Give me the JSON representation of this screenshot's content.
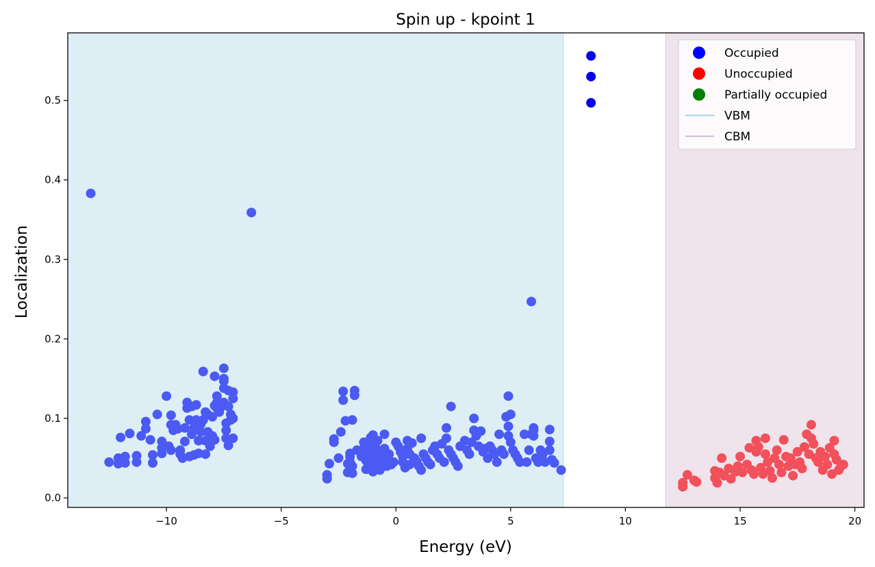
{
  "chart_data": {
    "type": "scatter",
    "title": "Spin up - kpoint 1",
    "xlabel": "Energy (eV)",
    "ylabel": "Localization",
    "xlim": [
      -14.3,
      20.4
    ],
    "ylim": [
      -0.012,
      0.585
    ],
    "xticks": [
      -10,
      -5,
      0,
      5,
      10,
      15,
      20
    ],
    "xtick_labels": [
      "−10",
      "−5",
      "0",
      "5",
      "10",
      "15",
      "20"
    ],
    "yticks": [
      0.0,
      0.1,
      0.2,
      0.3,
      0.4,
      0.5
    ],
    "ytick_labels": [
      "0.0",
      "0.1",
      "0.2",
      "0.3",
      "0.4",
      "0.5"
    ],
    "grid": false,
    "legend_position": "top-right",
    "vbm": 7.3,
    "cbm": 11.75,
    "regions": [
      {
        "name": "VBM",
        "from": -14.3,
        "to": 7.3,
        "color": "#ddeef5"
      },
      {
        "name": "CBM",
        "from": 11.75,
        "to": 20.4,
        "color": "#efe3ec"
      }
    ],
    "legend": [
      {
        "label": "Occupied",
        "kind": "marker",
        "color": "#0000ff"
      },
      {
        "label": "Unoccupied",
        "kind": "marker",
        "color": "#ff0000"
      },
      {
        "label": "Partially occupied",
        "kind": "marker",
        "color": "#008000"
      },
      {
        "label": "VBM",
        "kind": "line",
        "color": "#add8e6"
      },
      {
        "label": "CBM",
        "kind": "line",
        "color": "#d8bfd8"
      }
    ],
    "series": [
      {
        "name": "Occupied",
        "color": "#4a5af2",
        "points": [
          [
            -13.3,
            0.383
          ],
          [
            -6.3,
            0.359
          ],
          [
            5.9,
            0.247
          ],
          [
            -12.5,
            0.045
          ],
          [
            -12.1,
            0.05
          ],
          [
            -12.1,
            0.043
          ],
          [
            -12.0,
            0.076
          ],
          [
            -11.8,
            0.052
          ],
          [
            -11.8,
            0.044
          ],
          [
            -11.6,
            0.081
          ],
          [
            -11.3,
            0.053
          ],
          [
            -11.3,
            0.045
          ],
          [
            -11.1,
            0.078
          ],
          [
            -10.9,
            0.087
          ],
          [
            -10.9,
            0.096
          ],
          [
            -10.7,
            0.073
          ],
          [
            -10.6,
            0.044
          ],
          [
            -10.6,
            0.054
          ],
          [
            -10.4,
            0.105
          ],
          [
            -10.2,
            0.056
          ],
          [
            -10.2,
            0.063
          ],
          [
            -10.2,
            0.071
          ],
          [
            -10.0,
            0.128
          ],
          [
            -9.9,
            0.065
          ],
          [
            -9.8,
            0.06
          ],
          [
            -9.8,
            0.092
          ],
          [
            -9.8,
            0.104
          ],
          [
            -9.7,
            0.085
          ],
          [
            -9.6,
            0.092
          ],
          [
            -9.5,
            0.087
          ],
          [
            -9.4,
            0.06
          ],
          [
            -9.4,
            0.055
          ],
          [
            -9.3,
            0.05
          ],
          [
            -9.2,
            0.088
          ],
          [
            -9.2,
            0.071
          ],
          [
            -9.1,
            0.113
          ],
          [
            -9.1,
            0.12
          ],
          [
            -9.0,
            0.052
          ],
          [
            -9.0,
            0.098
          ],
          [
            -8.9,
            0.115
          ],
          [
            -8.9,
            0.08
          ],
          [
            -8.8,
            0.054
          ],
          [
            -8.8,
            0.088
          ],
          [
            -8.7,
            0.117
          ],
          [
            -8.7,
            0.098
          ],
          [
            -8.6,
            0.072
          ],
          [
            -8.6,
            0.056
          ],
          [
            -8.5,
            0.093
          ],
          [
            -8.5,
            0.083
          ],
          [
            -8.4,
            0.159
          ],
          [
            -8.4,
            0.098
          ],
          [
            -8.3,
            0.072
          ],
          [
            -8.3,
            0.055
          ],
          [
            -8.3,
            0.108
          ],
          [
            -8.2,
            0.105
          ],
          [
            -8.2,
            0.083
          ],
          [
            -8.1,
            0.065
          ],
          [
            -8.1,
            0.075
          ],
          [
            -8.0,
            0.102
          ],
          [
            -8.0,
            0.078
          ],
          [
            -7.9,
            0.153
          ],
          [
            -7.9,
            0.116
          ],
          [
            -7.9,
            0.073
          ],
          [
            -7.8,
            0.128
          ],
          [
            -7.8,
            0.113
          ],
          [
            -7.8,
            0.12
          ],
          [
            -7.7,
            0.108
          ],
          [
            -7.6,
            0.115
          ],
          [
            -7.5,
            0.163
          ],
          [
            -7.5,
            0.15
          ],
          [
            -7.5,
            0.147
          ],
          [
            -7.5,
            0.138
          ],
          [
            -7.5,
            0.12
          ],
          [
            -7.4,
            0.094
          ],
          [
            -7.4,
            0.085
          ],
          [
            -7.4,
            0.075
          ],
          [
            -7.3,
            0.135
          ],
          [
            -7.3,
            0.115
          ],
          [
            -7.3,
            0.066
          ],
          [
            -7.2,
            0.105
          ],
          [
            -7.2,
            0.098
          ],
          [
            -7.1,
            0.133
          ],
          [
            -7.1,
            0.125
          ],
          [
            -7.1,
            0.1
          ],
          [
            -7.1,
            0.075
          ],
          [
            -3.0,
            0.029
          ],
          [
            -3.0,
            0.024
          ],
          [
            -2.9,
            0.043
          ],
          [
            -2.7,
            0.074
          ],
          [
            -2.7,
            0.07
          ],
          [
            -2.5,
            0.05
          ],
          [
            -2.4,
            0.083
          ],
          [
            -2.3,
            0.134
          ],
          [
            -2.3,
            0.123
          ],
          [
            -2.2,
            0.097
          ],
          [
            -2.1,
            0.043
          ],
          [
            -2.1,
            0.032
          ],
          [
            -2.0,
            0.056
          ],
          [
            -2.0,
            0.052
          ],
          [
            -2.0,
            0.045
          ],
          [
            -1.9,
            0.098
          ],
          [
            -1.9,
            0.04
          ],
          [
            -1.9,
            0.031
          ],
          [
            -1.8,
            0.135
          ],
          [
            -1.8,
            0.129
          ],
          [
            -1.7,
            0.06
          ],
          [
            -1.5,
            0.058
          ],
          [
            -1.5,
            0.052
          ],
          [
            -1.4,
            0.07
          ],
          [
            -1.4,
            0.062
          ],
          [
            -1.3,
            0.055
          ],
          [
            -1.3,
            0.047
          ],
          [
            -1.3,
            0.036
          ],
          [
            -1.2,
            0.068
          ],
          [
            -1.2,
            0.042
          ],
          [
            -1.1,
            0.076
          ],
          [
            -1.1,
            0.06
          ],
          [
            -1.1,
            0.05
          ],
          [
            -1.0,
            0.045
          ],
          [
            -1.0,
            0.033
          ],
          [
            -1.0,
            0.079
          ],
          [
            -0.9,
            0.055
          ],
          [
            -0.9,
            0.065
          ],
          [
            -0.9,
            0.038
          ],
          [
            -0.8,
            0.06
          ],
          [
            -0.8,
            0.048
          ],
          [
            -0.8,
            0.072
          ],
          [
            -0.7,
            0.042
          ],
          [
            -0.7,
            0.035
          ],
          [
            -0.6,
            0.055
          ],
          [
            -0.6,
            0.045
          ],
          [
            -0.5,
            0.08
          ],
          [
            -0.5,
            0.062
          ],
          [
            -0.4,
            0.049
          ],
          [
            -0.4,
            0.04
          ],
          [
            -0.3,
            0.055
          ],
          [
            -0.2,
            0.042
          ],
          [
            -0.1,
            0.045
          ],
          [
            0.0,
            0.07
          ],
          [
            0.1,
            0.065
          ],
          [
            0.2,
            0.058
          ],
          [
            0.3,
            0.052
          ],
          [
            0.3,
            0.045
          ],
          [
            0.4,
            0.038
          ],
          [
            0.5,
            0.072
          ],
          [
            0.5,
            0.062
          ],
          [
            0.6,
            0.055
          ],
          [
            0.6,
            0.042
          ],
          [
            0.7,
            0.069
          ],
          [
            0.8,
            0.05
          ],
          [
            0.9,
            0.046
          ],
          [
            1.0,
            0.04
          ],
          [
            1.1,
            0.075
          ],
          [
            1.1,
            0.035
          ],
          [
            1.2,
            0.055
          ],
          [
            1.3,
            0.05
          ],
          [
            1.4,
            0.045
          ],
          [
            1.5,
            0.042
          ],
          [
            1.6,
            0.06
          ],
          [
            1.7,
            0.065
          ],
          [
            1.8,
            0.055
          ],
          [
            1.9,
            0.05
          ],
          [
            2.0,
            0.068
          ],
          [
            2.1,
            0.045
          ],
          [
            2.2,
            0.075
          ],
          [
            2.2,
            0.088
          ],
          [
            2.3,
            0.06
          ],
          [
            2.4,
            0.115
          ],
          [
            2.4,
            0.055
          ],
          [
            2.5,
            0.05
          ],
          [
            2.6,
            0.045
          ],
          [
            2.7,
            0.04
          ],
          [
            2.8,
            0.065
          ],
          [
            3.0,
            0.072
          ],
          [
            3.1,
            0.06
          ],
          [
            3.2,
            0.055
          ],
          [
            3.3,
            0.07
          ],
          [
            3.4,
            0.1
          ],
          [
            3.4,
            0.085
          ],
          [
            3.5,
            0.078
          ],
          [
            3.6,
            0.065
          ],
          [
            3.7,
            0.084
          ],
          [
            3.8,
            0.058
          ],
          [
            3.9,
            0.062
          ],
          [
            4.0,
            0.05
          ],
          [
            4.1,
            0.065
          ],
          [
            4.2,
            0.06
          ],
          [
            4.3,
            0.055
          ],
          [
            4.4,
            0.045
          ],
          [
            4.5,
            0.08
          ],
          [
            4.6,
            0.06
          ],
          [
            4.7,
            0.055
          ],
          [
            4.8,
            0.102
          ],
          [
            4.9,
            0.128
          ],
          [
            4.9,
            0.09
          ],
          [
            4.9,
            0.078
          ],
          [
            5.0,
            0.105
          ],
          [
            5.0,
            0.07
          ],
          [
            5.1,
            0.06
          ],
          [
            5.2,
            0.055
          ],
          [
            5.3,
            0.05
          ],
          [
            5.4,
            0.045
          ],
          [
            5.6,
            0.08
          ],
          [
            5.7,
            0.045
          ],
          [
            5.8,
            0.06
          ],
          [
            5.9,
            0.08
          ],
          [
            6.0,
            0.088
          ],
          [
            6.0,
            0.085
          ],
          [
            6.0,
            0.078
          ],
          [
            6.1,
            0.05
          ],
          [
            6.2,
            0.045
          ],
          [
            6.3,
            0.06
          ],
          [
            6.4,
            0.055
          ],
          [
            6.5,
            0.045
          ],
          [
            6.7,
            0.086
          ],
          [
            6.7,
            0.071
          ],
          [
            6.7,
            0.06
          ],
          [
            6.8,
            0.048
          ],
          [
            6.9,
            0.044
          ],
          [
            7.2,
            0.035
          ]
        ]
      },
      {
        "name": "Occupied (gap)",
        "color": "#0000ee",
        "points": [
          [
            8.5,
            0.556
          ],
          [
            8.5,
            0.53
          ],
          [
            8.5,
            0.497
          ]
        ]
      },
      {
        "name": "Unoccupied",
        "color": "#f2505a",
        "points": [
          [
            12.5,
            0.019
          ],
          [
            12.5,
            0.014
          ],
          [
            12.7,
            0.029
          ],
          [
            13.0,
            0.022
          ],
          [
            13.1,
            0.02
          ],
          [
            13.9,
            0.034
          ],
          [
            13.9,
            0.025
          ],
          [
            14.0,
            0.019
          ],
          [
            14.1,
            0.032
          ],
          [
            14.2,
            0.05
          ],
          [
            14.3,
            0.028
          ],
          [
            14.5,
            0.037
          ],
          [
            14.6,
            0.024
          ],
          [
            14.8,
            0.033
          ],
          [
            14.9,
            0.04
          ],
          [
            15.0,
            0.052
          ],
          [
            15.1,
            0.032
          ],
          [
            15.3,
            0.042
          ],
          [
            15.4,
            0.063
          ],
          [
            15.5,
            0.035
          ],
          [
            15.6,
            0.03
          ],
          [
            15.7,
            0.072
          ],
          [
            15.7,
            0.058
          ],
          [
            15.8,
            0.064
          ],
          [
            15.9,
            0.038
          ],
          [
            16.0,
            0.03
          ],
          [
            16.1,
            0.075
          ],
          [
            16.1,
            0.055
          ],
          [
            16.2,
            0.045
          ],
          [
            16.3,
            0.034
          ],
          [
            16.4,
            0.025
          ],
          [
            16.5,
            0.05
          ],
          [
            16.6,
            0.06
          ],
          [
            16.7,
            0.042
          ],
          [
            16.8,
            0.032
          ],
          [
            16.9,
            0.073
          ],
          [
            17.0,
            0.052
          ],
          [
            17.1,
            0.04
          ],
          [
            17.2,
            0.05
          ],
          [
            17.3,
            0.028
          ],
          [
            17.4,
            0.042
          ],
          [
            17.5,
            0.058
          ],
          [
            17.6,
            0.045
          ],
          [
            17.7,
            0.037
          ],
          [
            17.8,
            0.064
          ],
          [
            17.9,
            0.08
          ],
          [
            18.0,
            0.055
          ],
          [
            18.1,
            0.092
          ],
          [
            18.1,
            0.075
          ],
          [
            18.2,
            0.068
          ],
          [
            18.3,
            0.05
          ],
          [
            18.4,
            0.045
          ],
          [
            18.5,
            0.058
          ],
          [
            18.6,
            0.035
          ],
          [
            18.7,
            0.052
          ],
          [
            18.8,
            0.042
          ],
          [
            18.9,
            0.063
          ],
          [
            19.0,
            0.03
          ],
          [
            19.1,
            0.072
          ],
          [
            19.1,
            0.055
          ],
          [
            19.2,
            0.048
          ],
          [
            19.3,
            0.035
          ],
          [
            19.4,
            0.04
          ],
          [
            19.5,
            0.042
          ]
        ]
      }
    ]
  }
}
